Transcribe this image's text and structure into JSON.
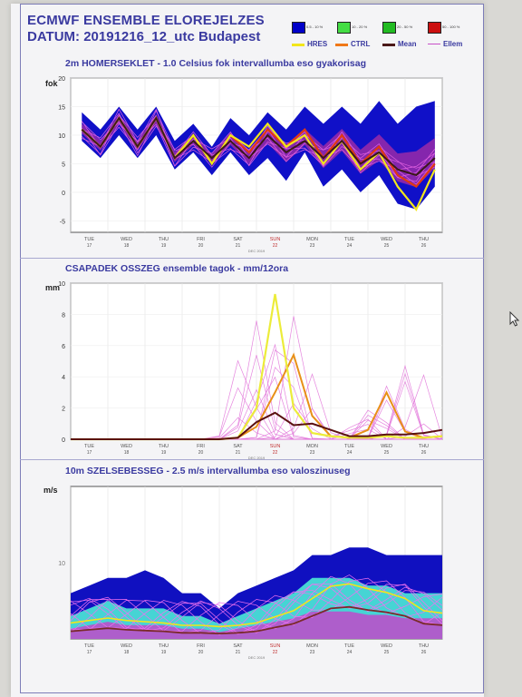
{
  "header": {
    "title": "ECMWF ENSEMBLE ELOREJELZES",
    "date_line": "DATUM: 20191216_12_utc  Budapest"
  },
  "legend": {
    "boxes": [
      {
        "label": "0.5 - 10 %",
        "color": "#0000c8"
      },
      {
        "label": "10 - 20 %",
        "color": "#44dd44"
      },
      {
        "label": "20 - 50 %",
        "color": "#22bb22"
      },
      {
        "label": "50 - 100 %",
        "color": "#cc1010"
      }
    ],
    "lines": [
      {
        "label": "HRES",
        "color": "#f2e61a"
      },
      {
        "label": "CTRL",
        "color": "#f07818"
      },
      {
        "label": "Mean",
        "color": "#4a1818"
      },
      {
        "label": "Ellem",
        "color": "#c850c8"
      }
    ]
  },
  "axis": {
    "days": [
      "TUE",
      "WED",
      "THU",
      "FRI",
      "SAT",
      "SUN",
      "MON",
      "TUE",
      "WED",
      "THU"
    ],
    "dates": [
      "17",
      "18",
      "19",
      "20",
      "21",
      "22",
      "23",
      "24",
      "25",
      "26"
    ],
    "month": "DEC 2019"
  },
  "chart_data": [
    {
      "type": "area",
      "title": "2m HOMERSEKLET - 1.0 Celsius fok intervallumba eso gyakorisag",
      "ylabel": "fok",
      "ylim": [
        -7,
        20
      ],
      "yticks": [
        "20",
        "15",
        "10",
        "5",
        "0",
        "-5"
      ],
      "xlim": [
        0,
        10
      ],
      "envelope_x": [
        0.3,
        0.8,
        1.3,
        1.8,
        2.3,
        2.8,
        3.3,
        3.8,
        4.3,
        4.8,
        5.3,
        5.8,
        6.3,
        6.8,
        7.3,
        7.8,
        8.3,
        8.8,
        9.3,
        9.8
      ],
      "envelope_upper": [
        14,
        11,
        15,
        11,
        15,
        9,
        12,
        8,
        13,
        10,
        14,
        11,
        15,
        12,
        15,
        12,
        16,
        12,
        15,
        16
      ],
      "envelope_lower": [
        9,
        6,
        10,
        6,
        10,
        4,
        7,
        3,
        7,
        3,
        6,
        2,
        7,
        1,
        4,
        0,
        3,
        -2,
        -3,
        1
      ],
      "hres": [
        11,
        8,
        13,
        8,
        13,
        6,
        10,
        5,
        10,
        8,
        12,
        8,
        10,
        5,
        9,
        4,
        7,
        1,
        -3,
        4
      ],
      "ctrl": [
        11,
        8,
        13,
        8,
        13,
        6,
        10,
        5,
        10,
        7,
        11,
        8,
        11,
        6,
        10,
        5,
        8,
        3,
        1,
        5
      ],
      "mean": [
        11,
        8,
        13,
        8,
        13,
        6,
        9,
        6,
        9,
        6,
        10,
        7,
        9,
        6,
        9,
        5,
        7,
        4,
        3,
        6
      ]
    },
    {
      "type": "line",
      "title": "CSAPADEK OSSZEG ensemble tagok - mm/12ora",
      "ylabel": "mm",
      "ylim": [
        0,
        10
      ],
      "yticks": [
        "10",
        "8",
        "6",
        "4",
        "2",
        "0"
      ],
      "xlim": [
        0,
        10
      ],
      "x": [
        0,
        0.5,
        1,
        1.5,
        2,
        2.5,
        3,
        3.5,
        4,
        4.5,
        5,
        5.5,
        6,
        6.5,
        7,
        7.5,
        8,
        8.5,
        9,
        9.5,
        10
      ],
      "hres": [
        0,
        0,
        0,
        0,
        0,
        0,
        0,
        0,
        0,
        0.1,
        2,
        9.3,
        2,
        0.4,
        0.2,
        0.1,
        0.1,
        0.2,
        0.1,
        0.1,
        0.2
      ],
      "ctrl": [
        0,
        0,
        0,
        0,
        0,
        0,
        0,
        0,
        0,
        0.1,
        0.8,
        3,
        5.4,
        1.5,
        0.2,
        0.1,
        0.6,
        3.0,
        0.5,
        0.1,
        0.2
      ],
      "mean": [
        0,
        0,
        0,
        0,
        0,
        0,
        0,
        0,
        0,
        0.1,
        1.1,
        1.7,
        0.9,
        1.0,
        0.6,
        0.2,
        0.2,
        0.3,
        0.3,
        0.4,
        0.6
      ],
      "members_peak": 9.5
    },
    {
      "type": "area",
      "title": "10m SZELSEBESSEG - 2.5 m/s intervallumba eso valoszinuseg",
      "ylabel": "m/s",
      "ylim": [
        0,
        20
      ],
      "yticks": [
        "10"
      ],
      "xlim": [
        0,
        10
      ],
      "envelope_x": [
        0,
        0.5,
        1,
        1.5,
        2,
        2.5,
        3,
        3.5,
        4,
        4.5,
        5,
        5.5,
        6,
        6.5,
        7,
        7.5,
        8,
        8.5,
        9,
        9.5,
        10
      ],
      "envelope_upper": [
        6,
        7,
        8,
        8,
        9,
        8,
        6,
        6,
        4,
        6,
        7,
        8,
        9,
        11,
        11,
        12,
        12,
        11,
        11,
        11,
        11
      ],
      "mid_upper": [
        3,
        4,
        5,
        4,
        4,
        4,
        3,
        3,
        2,
        3,
        4,
        5,
        6,
        8,
        8,
        8,
        7,
        7,
        6,
        6,
        6
      ],
      "mean": [
        1,
        1.2,
        1.4,
        1.2,
        1.1,
        1,
        0.8,
        0.8,
        0.7,
        0.8,
        1,
        1.5,
        2,
        3,
        4,
        4.2,
        3.8,
        3.5,
        3,
        2,
        1.8
      ]
    }
  ]
}
